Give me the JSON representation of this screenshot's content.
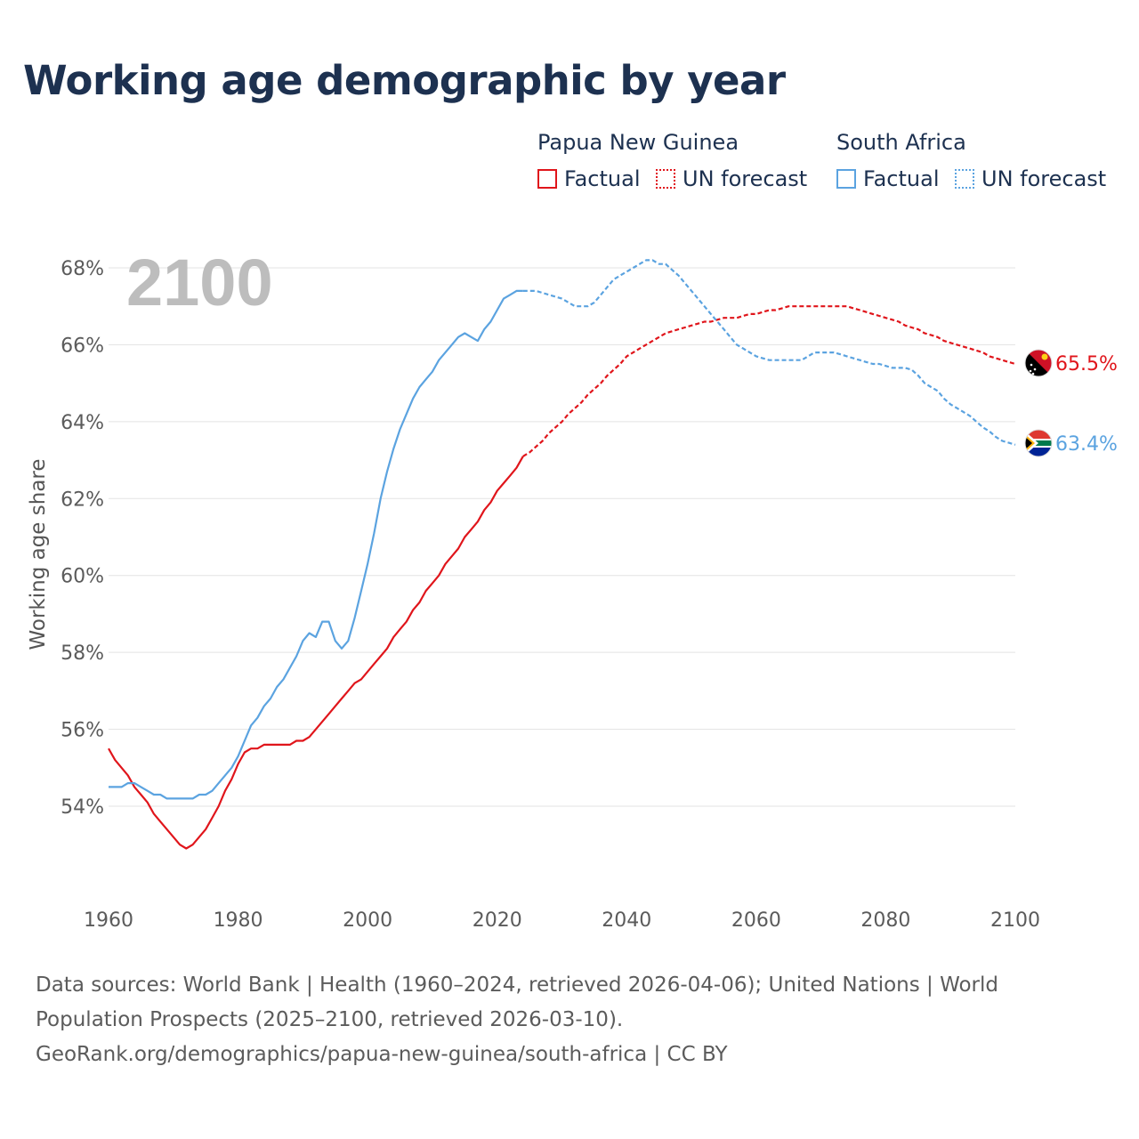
{
  "title": "Working age demographic by year",
  "legend": {
    "groups": [
      {
        "name": "Papua New Guinea",
        "factual_label": "Factual",
        "forecast_label": "UN forecast",
        "color": "#e0151b"
      },
      {
        "name": "South Africa",
        "factual_label": "Factual",
        "forecast_label": "UN forecast",
        "color": "#5ba3e0"
      }
    ]
  },
  "year_watermark": "2100",
  "sources": {
    "line1": "Data sources: World Bank | Health (1960–2024, retrieved 2026-04-06); United Nations | World",
    "line2": "Population Prospects (2025–2100, retrieved 2026-03-10).",
    "line3": "GeoRank.org/demographics/papua-new-guinea/south-africa | CC BY"
  },
  "chart_data": {
    "type": "line",
    "title": "Working age demographic by year",
    "xlabel": "",
    "ylabel": "Working age share",
    "xlim": [
      1960,
      2100
    ],
    "ylim": [
      52,
      69
    ],
    "x_ticks": [
      1960,
      1980,
      2000,
      2020,
      2040,
      2060,
      2080,
      2100
    ],
    "y_ticks": [
      54,
      56,
      58,
      60,
      62,
      64,
      66,
      68
    ],
    "y_tick_labels": [
      "54%",
      "56%",
      "58%",
      "60%",
      "62%",
      "64%",
      "66%",
      "68%"
    ],
    "grid": true,
    "forecast_start_year": 2024,
    "series": [
      {
        "name": "Papua New Guinea",
        "color": "#e0151b",
        "end_label": "65.5%",
        "points": [
          [
            1960,
            55.5
          ],
          [
            1961,
            55.2
          ],
          [
            1962,
            55.0
          ],
          [
            1963,
            54.8
          ],
          [
            1964,
            54.5
          ],
          [
            1965,
            54.3
          ],
          [
            1966,
            54.1
          ],
          [
            1967,
            53.8
          ],
          [
            1968,
            53.6
          ],
          [
            1969,
            53.4
          ],
          [
            1970,
            53.2
          ],
          [
            1971,
            53.0
          ],
          [
            1972,
            52.9
          ],
          [
            1973,
            53.0
          ],
          [
            1974,
            53.2
          ],
          [
            1975,
            53.4
          ],
          [
            1976,
            53.7
          ],
          [
            1977,
            54.0
          ],
          [
            1978,
            54.4
          ],
          [
            1979,
            54.7
          ],
          [
            1980,
            55.1
          ],
          [
            1981,
            55.4
          ],
          [
            1982,
            55.5
          ],
          [
            1983,
            55.5
          ],
          [
            1984,
            55.6
          ],
          [
            1985,
            55.6
          ],
          [
            1986,
            55.6
          ],
          [
            1987,
            55.6
          ],
          [
            1988,
            55.6
          ],
          [
            1989,
            55.7
          ],
          [
            1990,
            55.7
          ],
          [
            1991,
            55.8
          ],
          [
            1992,
            56.0
          ],
          [
            1993,
            56.2
          ],
          [
            1994,
            56.4
          ],
          [
            1995,
            56.6
          ],
          [
            1996,
            56.8
          ],
          [
            1997,
            57.0
          ],
          [
            1998,
            57.2
          ],
          [
            1999,
            57.3
          ],
          [
            2000,
            57.5
          ],
          [
            2001,
            57.7
          ],
          [
            2002,
            57.9
          ],
          [
            2003,
            58.1
          ],
          [
            2004,
            58.4
          ],
          [
            2005,
            58.6
          ],
          [
            2006,
            58.8
          ],
          [
            2007,
            59.1
          ],
          [
            2008,
            59.3
          ],
          [
            2009,
            59.6
          ],
          [
            2010,
            59.8
          ],
          [
            2011,
            60.0
          ],
          [
            2012,
            60.3
          ],
          [
            2013,
            60.5
          ],
          [
            2014,
            60.7
          ],
          [
            2015,
            61.0
          ],
          [
            2016,
            61.2
          ],
          [
            2017,
            61.4
          ],
          [
            2018,
            61.7
          ],
          [
            2019,
            61.9
          ],
          [
            2020,
            62.2
          ],
          [
            2021,
            62.4
          ],
          [
            2022,
            62.6
          ],
          [
            2023,
            62.8
          ],
          [
            2024,
            63.1
          ],
          [
            2025,
            63.2
          ],
          [
            2026,
            63.35
          ],
          [
            2027,
            63.5
          ],
          [
            2028,
            63.7
          ],
          [
            2029,
            63.85
          ],
          [
            2030,
            64.0
          ],
          [
            2031,
            64.2
          ],
          [
            2032,
            64.35
          ],
          [
            2033,
            64.5
          ],
          [
            2034,
            64.7
          ],
          [
            2035,
            64.85
          ],
          [
            2036,
            65.0
          ],
          [
            2037,
            65.2
          ],
          [
            2038,
            65.35
          ],
          [
            2039,
            65.5
          ],
          [
            2040,
            65.7
          ],
          [
            2041,
            65.8
          ],
          [
            2042,
            65.9
          ],
          [
            2043,
            66.0
          ],
          [
            2044,
            66.1
          ],
          [
            2045,
            66.2
          ],
          [
            2046,
            66.3
          ],
          [
            2047,
            66.35
          ],
          [
            2048,
            66.4
          ],
          [
            2049,
            66.45
          ],
          [
            2050,
            66.5
          ],
          [
            2051,
            66.55
          ],
          [
            2052,
            66.6
          ],
          [
            2053,
            66.6
          ],
          [
            2054,
            66.65
          ],
          [
            2055,
            66.7
          ],
          [
            2056,
            66.7
          ],
          [
            2057,
            66.7
          ],
          [
            2058,
            66.75
          ],
          [
            2059,
            66.8
          ],
          [
            2060,
            66.8
          ],
          [
            2061,
            66.85
          ],
          [
            2062,
            66.9
          ],
          [
            2063,
            66.9
          ],
          [
            2064,
            66.95
          ],
          [
            2065,
            67.0
          ],
          [
            2066,
            67.0
          ],
          [
            2067,
            67.0
          ],
          [
            2068,
            67.0
          ],
          [
            2069,
            67.0
          ],
          [
            2070,
            67.0
          ],
          [
            2071,
            67.0
          ],
          [
            2072,
            67.0
          ],
          [
            2073,
            67.0
          ],
          [
            2074,
            67.0
          ],
          [
            2075,
            66.95
          ],
          [
            2076,
            66.9
          ],
          [
            2077,
            66.85
          ],
          [
            2078,
            66.8
          ],
          [
            2079,
            66.75
          ],
          [
            2080,
            66.7
          ],
          [
            2081,
            66.65
          ],
          [
            2082,
            66.6
          ],
          [
            2083,
            66.5
          ],
          [
            2084,
            66.45
          ],
          [
            2085,
            66.4
          ],
          [
            2086,
            66.3
          ],
          [
            2087,
            66.25
          ],
          [
            2088,
            66.2
          ],
          [
            2089,
            66.1
          ],
          [
            2090,
            66.05
          ],
          [
            2091,
            66.0
          ],
          [
            2092,
            65.95
          ],
          [
            2093,
            65.9
          ],
          [
            2094,
            65.85
          ],
          [
            2095,
            65.8
          ],
          [
            2096,
            65.7
          ],
          [
            2097,
            65.65
          ],
          [
            2098,
            65.6
          ],
          [
            2099,
            65.55
          ],
          [
            2100,
            65.5
          ]
        ]
      },
      {
        "name": "South Africa",
        "color": "#5ba3e0",
        "end_label": "63.4%",
        "points": [
          [
            1960,
            54.5
          ],
          [
            1961,
            54.5
          ],
          [
            1962,
            54.5
          ],
          [
            1963,
            54.6
          ],
          [
            1964,
            54.6
          ],
          [
            1965,
            54.5
          ],
          [
            1966,
            54.4
          ],
          [
            1967,
            54.3
          ],
          [
            1968,
            54.3
          ],
          [
            1969,
            54.2
          ],
          [
            1970,
            54.2
          ],
          [
            1971,
            54.2
          ],
          [
            1972,
            54.2
          ],
          [
            1973,
            54.2
          ],
          [
            1974,
            54.3
          ],
          [
            1975,
            54.3
          ],
          [
            1976,
            54.4
          ],
          [
            1977,
            54.6
          ],
          [
            1978,
            54.8
          ],
          [
            1979,
            55.0
          ],
          [
            1980,
            55.3
          ],
          [
            1981,
            55.7
          ],
          [
            1982,
            56.1
          ],
          [
            1983,
            56.3
          ],
          [
            1984,
            56.6
          ],
          [
            1985,
            56.8
          ],
          [
            1986,
            57.1
          ],
          [
            1987,
            57.3
          ],
          [
            1988,
            57.6
          ],
          [
            1989,
            57.9
          ],
          [
            1990,
            58.3
          ],
          [
            1991,
            58.5
          ],
          [
            1992,
            58.4
          ],
          [
            1993,
            58.8
          ],
          [
            1994,
            58.8
          ],
          [
            1995,
            58.3
          ],
          [
            1996,
            58.1
          ],
          [
            1997,
            58.3
          ],
          [
            1998,
            58.9
          ],
          [
            1999,
            59.6
          ],
          [
            2000,
            60.3
          ],
          [
            2001,
            61.1
          ],
          [
            2002,
            62.0
          ],
          [
            2003,
            62.7
          ],
          [
            2004,
            63.3
          ],
          [
            2005,
            63.8
          ],
          [
            2006,
            64.2
          ],
          [
            2007,
            64.6
          ],
          [
            2008,
            64.9
          ],
          [
            2009,
            65.1
          ],
          [
            2010,
            65.3
          ],
          [
            2011,
            65.6
          ],
          [
            2012,
            65.8
          ],
          [
            2013,
            66.0
          ],
          [
            2014,
            66.2
          ],
          [
            2015,
            66.3
          ],
          [
            2016,
            66.2
          ],
          [
            2017,
            66.1
          ],
          [
            2018,
            66.4
          ],
          [
            2019,
            66.6
          ],
          [
            2020,
            66.9
          ],
          [
            2021,
            67.2
          ],
          [
            2022,
            67.3
          ],
          [
            2023,
            67.4
          ],
          [
            2024,
            67.4
          ],
          [
            2025,
            67.4
          ],
          [
            2026,
            67.4
          ],
          [
            2027,
            67.35
          ],
          [
            2028,
            67.3
          ],
          [
            2029,
            67.25
          ],
          [
            2030,
            67.2
          ],
          [
            2031,
            67.1
          ],
          [
            2032,
            67.0
          ],
          [
            2033,
            67.0
          ],
          [
            2034,
            67.0
          ],
          [
            2035,
            67.1
          ],
          [
            2036,
            67.3
          ],
          [
            2037,
            67.5
          ],
          [
            2038,
            67.7
          ],
          [
            2039,
            67.8
          ],
          [
            2040,
            67.9
          ],
          [
            2041,
            68.0
          ],
          [
            2042,
            68.1
          ],
          [
            2043,
            68.2
          ],
          [
            2044,
            68.2
          ],
          [
            2045,
            68.1
          ],
          [
            2046,
            68.1
          ],
          [
            2047,
            67.95
          ],
          [
            2048,
            67.8
          ],
          [
            2049,
            67.6
          ],
          [
            2050,
            67.4
          ],
          [
            2051,
            67.2
          ],
          [
            2052,
            67.0
          ],
          [
            2053,
            66.8
          ],
          [
            2054,
            66.6
          ],
          [
            2055,
            66.4
          ],
          [
            2056,
            66.2
          ],
          [
            2057,
            66.0
          ],
          [
            2058,
            65.9
          ],
          [
            2059,
            65.8
          ],
          [
            2060,
            65.7
          ],
          [
            2061,
            65.65
          ],
          [
            2062,
            65.6
          ],
          [
            2063,
            65.6
          ],
          [
            2064,
            65.6
          ],
          [
            2065,
            65.6
          ],
          [
            2066,
            65.6
          ],
          [
            2067,
            65.6
          ],
          [
            2068,
            65.7
          ],
          [
            2069,
            65.8
          ],
          [
            2070,
            65.8
          ],
          [
            2071,
            65.8
          ],
          [
            2072,
            65.8
          ],
          [
            2073,
            65.75
          ],
          [
            2074,
            65.7
          ],
          [
            2075,
            65.65
          ],
          [
            2076,
            65.6
          ],
          [
            2077,
            65.55
          ],
          [
            2078,
            65.5
          ],
          [
            2079,
            65.5
          ],
          [
            2080,
            65.45
          ],
          [
            2081,
            65.4
          ],
          [
            2082,
            65.4
          ],
          [
            2083,
            65.4
          ],
          [
            2084,
            65.35
          ],
          [
            2085,
            65.2
          ],
          [
            2086,
            65.0
          ],
          [
            2087,
            64.9
          ],
          [
            2088,
            64.8
          ],
          [
            2089,
            64.6
          ],
          [
            2090,
            64.45
          ],
          [
            2091,
            64.35
          ],
          [
            2092,
            64.25
          ],
          [
            2093,
            64.15
          ],
          [
            2094,
            64.0
          ],
          [
            2095,
            63.85
          ],
          [
            2096,
            63.75
          ],
          [
            2097,
            63.6
          ],
          [
            2098,
            63.5
          ],
          [
            2099,
            63.45
          ],
          [
            2100,
            63.4
          ]
        ]
      }
    ]
  }
}
